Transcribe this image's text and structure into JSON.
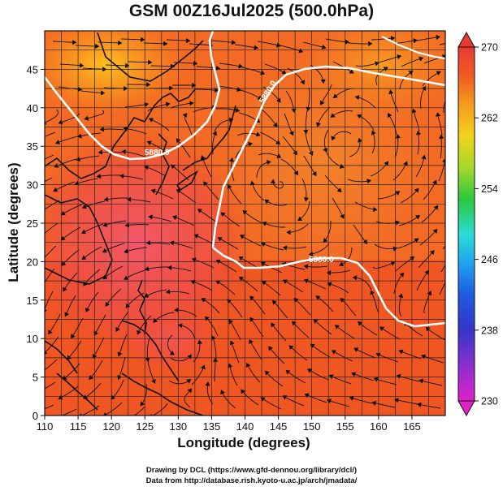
{
  "title": "GSM 00Z16Jul2025 (500.0hPa)",
  "xlabel": "Longitude (degrees)",
  "ylabel": "Latitude  (degrees)",
  "credits": {
    "line1": "Drawing by DCL (https://www.gfd-dennou.org/library/dcl/)",
    "line2": "Data from http://database.rish.kyoto-u.ac.jp/arch/jmadata/"
  },
  "map": {
    "x_ticks": [
      "110",
      "115",
      "120",
      "125",
      "130",
      "135",
      "140",
      "145",
      "150",
      "155",
      "160",
      "165"
    ],
    "y_ticks": [
      "0",
      "5",
      "10",
      "15",
      "20",
      "25",
      "30",
      "35",
      "40",
      "45"
    ],
    "xlim": [
      110,
      170
    ],
    "ylim": [
      0,
      50
    ],
    "contour_label": "5880.0",
    "field_colors": {
      "warm_core": "#f04c3a",
      "north_heat": "#ffb020",
      "base": "#f36a24",
      "tropics": "#ee4a1e"
    }
  },
  "colorbar": {
    "ticks": [
      "270",
      "262",
      "254",
      "246",
      "238",
      "230"
    ],
    "range": [
      230,
      270
    ],
    "colors": [
      "#e020c8",
      "#8a2fd0",
      "#3535c8",
      "#1e8cf0",
      "#2adcd8",
      "#2bc83c",
      "#a6d82a",
      "#f2d21a",
      "#f49a1c",
      "#f15a22",
      "#e83a32"
    ]
  }
}
